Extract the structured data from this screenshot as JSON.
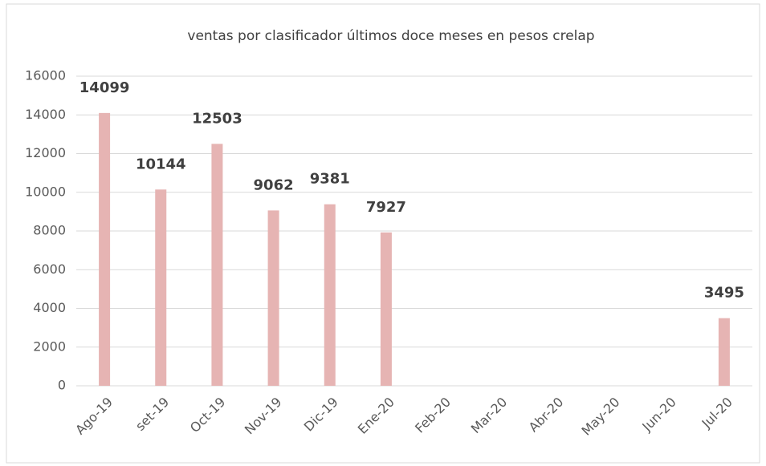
{
  "chart_data": {
    "type": "bar",
    "title": "ventas por clasificador últimos doce meses en pesos crelap",
    "categories": [
      "Ago-19",
      "set-19",
      "Oct-19",
      "Nov-19",
      "Dic-19",
      "Ene-20",
      "Feb-20",
      "Mar-20",
      "Abr-20",
      "May-20",
      "Jun-20",
      "Jul-20"
    ],
    "values": [
      14099,
      10144,
      12503,
      9062,
      9381,
      7927,
      null,
      null,
      null,
      null,
      null,
      3495
    ],
    "color": "#e6b4b3",
    "ylim": [
      0,
      16000
    ],
    "yticks": [
      0,
      2000,
      4000,
      6000,
      8000,
      10000,
      12000,
      14000,
      16000
    ],
    "grid": true
  }
}
